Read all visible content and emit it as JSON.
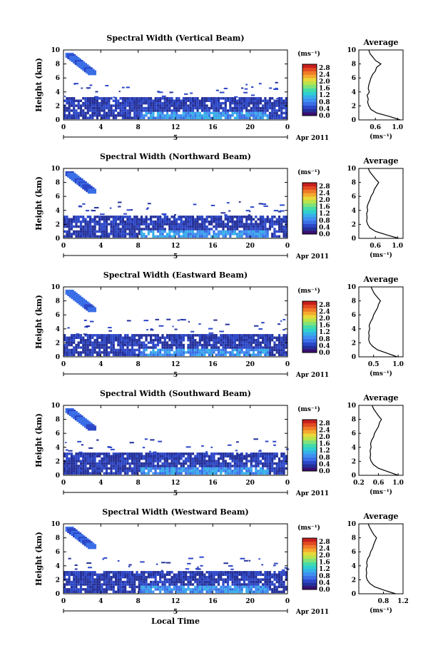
{
  "chart_data": [
    {
      "type": "heatmap",
      "title": "Spectral Width (Vertical Beam)",
      "ylabel": "Height (km)",
      "xticks": [
        "0",
        "4",
        "8",
        "12",
        "16",
        "20",
        "0"
      ],
      "yticks": [
        "0",
        "2",
        "4",
        "6",
        "8",
        "10"
      ],
      "xlim": [
        0,
        24
      ],
      "ylim": [
        0,
        10
      ],
      "date_label": "5",
      "month_label": "Apr 2011",
      "colorbar": {
        "unit": "(ms⁻¹)",
        "ticks": [
          "0.0",
          "0.4",
          "0.8",
          "1.2",
          "1.6",
          "2.0",
          "2.4",
          "2.8"
        ],
        "range": [
          0,
          3.0
        ]
      },
      "side": {
        "title": "Average",
        "xlabel": "(ms⁻¹)",
        "xticks": [
          "0.6",
          "1.0"
        ],
        "xlim": [
          0.3,
          1.1
        ],
        "heights": [
          0,
          0.5,
          1,
          1.5,
          2,
          2.5,
          3,
          3.5,
          4,
          4.5,
          5,
          5.5,
          6,
          6.5,
          7,
          7.5,
          8,
          8.5,
          9,
          9.5,
          10
        ],
        "values": [
          1.05,
          0.85,
          0.62,
          0.52,
          0.48,
          0.46,
          0.47,
          0.45,
          0.49,
          0.47,
          0.48,
          0.5,
          0.52,
          0.55,
          0.6,
          0.62,
          0.7,
          0.6,
          0.55,
          0.5,
          0.48
        ]
      }
    },
    {
      "type": "heatmap",
      "title": "Spectral Width (Northward Beam)",
      "ylabel": "Height (km)",
      "xticks": [
        "0",
        "4",
        "8",
        "12",
        "16",
        "20",
        "0"
      ],
      "yticks": [
        "0",
        "2",
        "4",
        "6",
        "8",
        "10"
      ],
      "xlim": [
        0,
        24
      ],
      "ylim": [
        0,
        10
      ],
      "date_label": "5",
      "month_label": "Apr 2011",
      "colorbar": {
        "unit": "(ms⁻¹)",
        "ticks": [
          "0.0",
          "0.4",
          "0.8",
          "1.2",
          "1.6",
          "2.0",
          "2.4",
          "2.8"
        ],
        "range": [
          0,
          3.0
        ]
      },
      "side": {
        "title": "Average",
        "xlabel": "(ms⁻¹)",
        "xticks": [
          "0.6",
          "1.0"
        ],
        "xlim": [
          0.3,
          1.1
        ],
        "heights": [
          0,
          0.5,
          1,
          1.5,
          2,
          2.5,
          3,
          3.5,
          4,
          4.5,
          5,
          5.5,
          6,
          6.5,
          7,
          7.5,
          8,
          8.5,
          9,
          9.5,
          10
        ],
        "values": [
          1.02,
          0.8,
          0.6,
          0.5,
          0.46,
          0.44,
          0.45,
          0.44,
          0.46,
          0.45,
          0.47,
          0.5,
          0.52,
          0.56,
          0.58,
          0.62,
          0.66,
          0.6,
          0.55,
          0.5,
          0.47
        ]
      }
    },
    {
      "type": "heatmap",
      "title": "Spectral Width (Eastward Beam)",
      "ylabel": "Height (km)",
      "xticks": [
        "0",
        "4",
        "8",
        "12",
        "16",
        "20",
        "0"
      ],
      "yticks": [
        "0",
        "2",
        "4",
        "6",
        "8",
        "10"
      ],
      "xlim": [
        0,
        24
      ],
      "ylim": [
        0,
        10
      ],
      "date_label": "5",
      "month_label": "Apr 2011",
      "colorbar": {
        "unit": "(ms⁻¹)",
        "ticks": [
          "0.0",
          "0.4",
          "0.8",
          "1.2",
          "1.6",
          "2.0",
          "2.4",
          "2.8"
        ],
        "range": [
          0,
          3.0
        ]
      },
      "side": {
        "title": "Average",
        "xlabel": "(ms⁻¹)",
        "xticks": [
          "0.5",
          "1.0"
        ],
        "xlim": [
          0.2,
          1.1
        ],
        "heights": [
          0,
          0.5,
          1,
          1.5,
          2,
          2.5,
          3,
          3.5,
          4,
          4.5,
          5,
          5.5,
          6,
          6.5,
          7,
          7.5,
          8,
          8.5,
          9,
          9.5,
          10
        ],
        "values": [
          0.98,
          0.78,
          0.58,
          0.48,
          0.42,
          0.4,
          0.41,
          0.4,
          0.42,
          0.41,
          0.44,
          0.48,
          0.5,
          0.54,
          0.58,
          0.6,
          0.64,
          0.58,
          0.52,
          0.48,
          0.45
        ]
      }
    },
    {
      "type": "heatmap",
      "title": "Spectral Width (Southward Beam)",
      "ylabel": "Height (km)",
      "xticks": [
        "0",
        "4",
        "8",
        "12",
        "16",
        "20",
        "0"
      ],
      "yticks": [
        "0",
        "2",
        "4",
        "6",
        "8",
        "10"
      ],
      "xlim": [
        0,
        24
      ],
      "ylim": [
        0,
        10
      ],
      "date_label": "5",
      "month_label": "Apr 2011",
      "colorbar": {
        "unit": "(ms⁻¹)",
        "ticks": [
          "0.0",
          "0.4",
          "0.8",
          "1.2",
          "1.6",
          "2.0",
          "2.4",
          "2.8"
        ],
        "range": [
          0,
          3.0
        ]
      },
      "side": {
        "title": "Average",
        "xlabel": "(ms⁻¹)",
        "xticks": [
          "0.2",
          "0.6",
          "1.0"
        ],
        "xlim": [
          0.2,
          1.1
        ],
        "heights": [
          0,
          0.5,
          1,
          1.5,
          2,
          2.5,
          3,
          3.5,
          4,
          4.5,
          5,
          5.5,
          6,
          6.5,
          7,
          7.5,
          8,
          8.5,
          9,
          9.5,
          10
        ],
        "values": [
          1.0,
          0.8,
          0.6,
          0.5,
          0.45,
          0.43,
          0.44,
          0.43,
          0.45,
          0.44,
          0.46,
          0.5,
          0.52,
          0.56,
          0.6,
          0.62,
          0.66,
          0.6,
          0.55,
          0.5,
          0.47
        ]
      }
    },
    {
      "type": "heatmap",
      "title": "Spectral Width (Westward Beam)",
      "ylabel": "Height (km)",
      "xlabel": "Local Time",
      "xticks": [
        "0",
        "4",
        "8",
        "12",
        "16",
        "20",
        "0"
      ],
      "yticks": [
        "0",
        "2",
        "4",
        "6",
        "8",
        "10"
      ],
      "xlim": [
        0,
        24
      ],
      "ylim": [
        0,
        10
      ],
      "date_label": "5",
      "month_label": "Apr 2011",
      "colorbar": {
        "unit": "(ms⁻¹)",
        "ticks": [
          "0.0",
          "0.4",
          "0.8",
          "1.2",
          "1.6",
          "2.0",
          "2.4",
          "2.8"
        ],
        "range": [
          0,
          3.0
        ]
      },
      "side": {
        "title": "Average",
        "xlabel": "(ms⁻¹)",
        "xticks": [
          "0.8",
          "1.2"
        ],
        "xlim": [
          0.3,
          1.2
        ],
        "heights": [
          0,
          0.5,
          1,
          1.5,
          2,
          2.5,
          3,
          3.5,
          4,
          4.5,
          5,
          5.5,
          6,
          6.5,
          7,
          7.5,
          8,
          8.5,
          9,
          9.5,
          10
        ],
        "values": [
          1.05,
          0.82,
          0.62,
          0.52,
          0.47,
          0.45,
          0.46,
          0.45,
          0.47,
          0.46,
          0.48,
          0.52,
          0.54,
          0.58,
          0.6,
          0.63,
          0.66,
          0.6,
          0.56,
          0.52,
          0.49
        ]
      }
    }
  ]
}
